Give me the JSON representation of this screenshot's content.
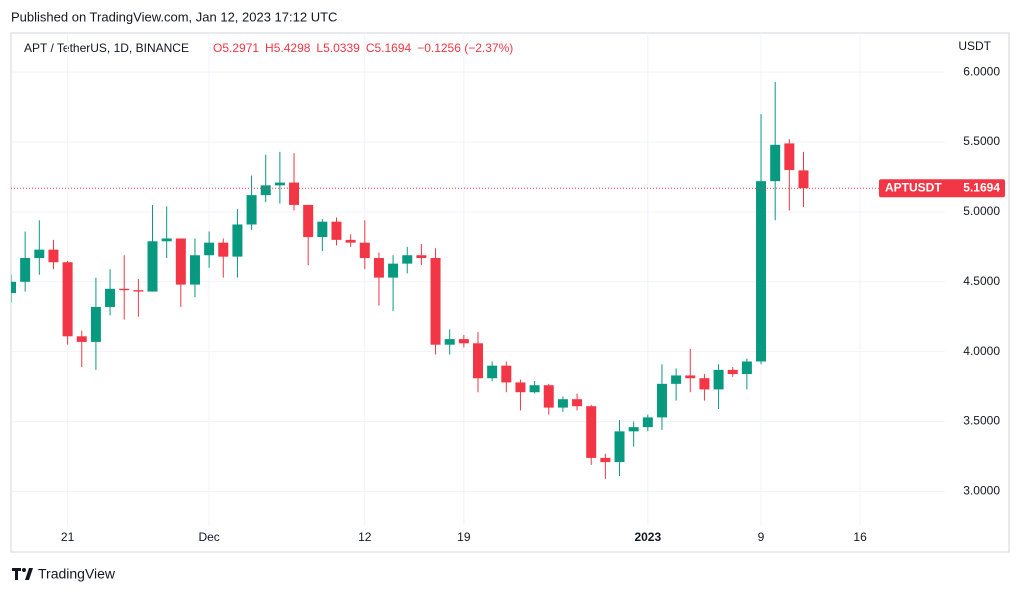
{
  "header": {
    "published": "Published on TradingView.com, Jan 12, 2023 17:12 UTC",
    "footer": "TradingView"
  },
  "chart_data": {
    "type": "candlestick",
    "symbol": "APT / TetherUS, 1D, BINANCE",
    "ohlc_text": [
      "O5.2971",
      "H5.4298",
      "L5.0339",
      "C5.1694"
    ],
    "change_text": "−0.1256 (−2.37%)",
    "currency": "USDT",
    "up_color": "#089981",
    "down_color": "#f23645",
    "open": [
      4.42,
      4.5,
      4.67,
      4.73,
      4.64,
      4.11,
      4.07,
      4.32,
      4.45,
      4.44,
      4.43,
      4.79,
      4.81,
      4.48,
      4.69,
      4.78,
      4.68,
      4.91,
      5.12,
      5.19,
      5.21,
      5.05,
      4.82,
      4.93,
      4.8,
      4.78,
      4.67,
      4.53,
      4.63,
      4.69,
      4.67,
      4.05,
      4.09,
      4.06,
      3.81,
      3.9,
      3.78,
      3.71,
      3.76,
      3.6,
      3.66,
      3.61,
      3.24,
      3.21,
      3.43,
      3.46,
      3.53,
      3.77,
      3.83,
      3.81,
      3.73,
      3.87,
      3.84,
      3.93,
      5.22,
      5.49,
      5.2971
    ],
    "high": [
      4.55,
      4.86,
      4.94,
      4.8,
      4.65,
      4.15,
      4.53,
      4.59,
      4.69,
      4.52,
      5.05,
      5.04,
      4.81,
      4.81,
      4.86,
      4.81,
      5.02,
      5.26,
      5.41,
      5.43,
      5.42,
      5.05,
      4.95,
      4.96,
      4.84,
      4.94,
      4.71,
      4.69,
      4.75,
      4.77,
      4.74,
      4.16,
      4.12,
      4.14,
      3.93,
      3.93,
      3.8,
      3.79,
      3.77,
      3.68,
      3.7,
      3.62,
      3.27,
      3.51,
      3.5,
      3.55,
      3.91,
      3.88,
      4.02,
      3.84,
      3.91,
      3.89,
      3.95,
      5.7,
      5.93,
      5.52,
      5.4298
    ],
    "low": [
      4.35,
      4.43,
      4.55,
      4.59,
      4.05,
      3.89,
      3.87,
      4.26,
      4.23,
      4.25,
      4.43,
      4.67,
      4.32,
      4.39,
      4.6,
      4.53,
      4.53,
      4.87,
      5.07,
      5.06,
      5.01,
      4.62,
      4.72,
      4.76,
      4.75,
      4.59,
      4.33,
      4.29,
      4.56,
      4.62,
      3.98,
      3.98,
      4.03,
      3.71,
      3.79,
      3.71,
      3.58,
      3.7,
      3.55,
      3.57,
      3.58,
      3.19,
      3.09,
      3.11,
      3.32,
      3.43,
      3.44,
      3.65,
      3.71,
      3.65,
      3.59,
      3.82,
      3.73,
      3.91,
      4.94,
      5.01,
      5.0339
    ],
    "close": [
      4.5,
      4.67,
      4.73,
      4.64,
      4.11,
      4.07,
      4.32,
      4.45,
      4.44,
      4.43,
      4.79,
      4.81,
      4.48,
      4.69,
      4.78,
      4.68,
      4.91,
      5.12,
      5.19,
      5.21,
      5.05,
      4.82,
      4.93,
      4.8,
      4.78,
      4.67,
      4.53,
      4.63,
      4.69,
      4.67,
      4.05,
      4.09,
      4.06,
      3.81,
      3.9,
      3.78,
      3.71,
      3.76,
      3.6,
      3.66,
      3.61,
      3.24,
      3.21,
      3.43,
      3.46,
      3.53,
      3.77,
      3.83,
      3.81,
      3.73,
      3.87,
      3.84,
      3.93,
      5.22,
      5.48,
      5.3,
      5.1694
    ],
    "xlim": [
      0,
      66
    ],
    "xticks": [
      {
        "value": 4,
        "label": "21"
      },
      {
        "value": 14,
        "label": "Dec"
      },
      {
        "value": 25,
        "label": "12"
      },
      {
        "value": 32,
        "label": "19"
      },
      {
        "value": 45,
        "label": "2023"
      },
      {
        "value": 53,
        "label": "9"
      },
      {
        "value": 60,
        "label": "16"
      }
    ],
    "ylim": [
      2.76,
      6.28
    ],
    "yticks": [
      {
        "value": 3,
        "label": "3.0000"
      },
      {
        "value": 3.5,
        "label": "3.5000"
      },
      {
        "value": 4,
        "label": "4.0000"
      },
      {
        "value": 4.5,
        "label": "4.5000"
      },
      {
        "value": 5,
        "label": "5.0000"
      },
      {
        "value": 5.5,
        "label": "5.5000"
      },
      {
        "value": 6,
        "label": "6.0000"
      }
    ],
    "grid": true,
    "last_price_name": "APTUSDT",
    "last_price": 5.1694
  }
}
